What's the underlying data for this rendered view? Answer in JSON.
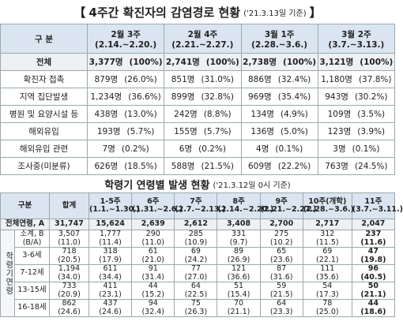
{
  "table1": {
    "open": "【",
    "close": "】",
    "title": "4주간 확진자의 감염경로 현황",
    "note": "('21.3.13일 기준)",
    "header": {
      "label": "구 분",
      "cols": [
        {
          "week": "2월 3주",
          "range": "(2.14.~2.20.)"
        },
        {
          "week": "2월 4주",
          "range": "(2.21.~2.27.)"
        },
        {
          "week": "3월 1주",
          "range": "(2.28.~3.6.)"
        },
        {
          "week": "3월 2주",
          "range": "(3.7.~3.13.)"
        }
      ]
    },
    "rows": [
      {
        "label": "전체",
        "cells": [
          {
            "count": "3,377명",
            "pct": "(100%)"
          },
          {
            "count": "2,741명",
            "pct": "(100%)"
          },
          {
            "count": "2,738명",
            "pct": "(100%)"
          },
          {
            "count": "3,121명",
            "pct": "(100%)"
          }
        ]
      },
      {
        "label": "확진자 접촉",
        "cells": [
          {
            "count": "879명",
            "pct": "(26.0%)"
          },
          {
            "count": "851명",
            "pct": "(31.0%)"
          },
          {
            "count": "886명",
            "pct": "(32.4%)"
          },
          {
            "count": "1,180명",
            "pct": "(37.8%)"
          }
        ]
      },
      {
        "label": "지역 집단발생",
        "cells": [
          {
            "count": "1,234명",
            "pct": "(36.6%)"
          },
          {
            "count": "899명",
            "pct": "(32.8%)"
          },
          {
            "count": "969명",
            "pct": "(35.4%)"
          },
          {
            "count": "943명",
            "pct": "(30.2%)"
          }
        ]
      },
      {
        "label": "병원 및 요양시설 등",
        "cells": [
          {
            "count": "438명",
            "pct": "(13.0%)"
          },
          {
            "count": "242명",
            "pct": "(8.8%)"
          },
          {
            "count": "134명",
            "pct": "(4.9%)"
          },
          {
            "count": "109명",
            "pct": "(3.5%)"
          }
        ]
      },
      {
        "label": "해외유입",
        "cells": [
          {
            "count": "193명",
            "pct": "(5.7%)"
          },
          {
            "count": "155명",
            "pct": "(5.7%)"
          },
          {
            "count": "136명",
            "pct": "(5.0%)"
          },
          {
            "count": "123명",
            "pct": "(3.9%)"
          }
        ]
      },
      {
        "label": "해외유입 관련",
        "cells": [
          {
            "count": "7명",
            "pct": "(0.2%)"
          },
          {
            "count": "6명",
            "pct": "(0.2%)"
          },
          {
            "count": "4명",
            "pct": "(0.1%)"
          },
          {
            "count": "3명",
            "pct": "(0.1%)"
          }
        ]
      },
      {
        "label": "조사중(미분류)",
        "cells": [
          {
            "count": "626명",
            "pct": "(18.5%)"
          },
          {
            "count": "588명",
            "pct": "(21.5%)"
          },
          {
            "count": "609명",
            "pct": "(22.2%)"
          },
          {
            "count": "763명",
            "pct": "(24.5%)"
          }
        ]
      }
    ]
  },
  "table2": {
    "title": "학령기 연령별 발생 현황",
    "note": "('21.3.12일 0시 기준)",
    "header": {
      "label": "구분",
      "total": "합계",
      "cols": [
        {
          "week": "1-5주",
          "range": "(1.1.~1.30.)"
        },
        {
          "week": "6주",
          "range": "(1.31.~2.6.)"
        },
        {
          "week": "7주",
          "range": "(2.7.~2.13.)"
        },
        {
          "week": "8주",
          "range": "(2.14.~2.20.)"
        },
        {
          "week": "9주",
          "range": "(2.21.~2.27.)"
        },
        {
          "week": "10주(개학)",
          "range": "(2.28.~3.6.)"
        },
        {
          "week": "11주",
          "range": "(3.7.~3.11.)"
        }
      ]
    },
    "total_row": {
      "label": "전체연령, A",
      "values": [
        "31,747",
        "15,624",
        "2,639",
        "2,612",
        "3,408",
        "2,700",
        "2,717",
        "2,047"
      ]
    },
    "group_label": "학령기연령",
    "rows": [
      {
        "label": "소계, B",
        "sub": "(B/A)",
        "values": [
          {
            "n": "3,507",
            "pct": "(11.0)"
          },
          {
            "n": "1,777",
            "pct": "(11.4)"
          },
          {
            "n": "290",
            "pct": "(11.0)"
          },
          {
            "n": "285",
            "pct": "(10.9)"
          },
          {
            "n": "331",
            "pct": "(9.7)"
          },
          {
            "n": "275",
            "pct": "(10.2)"
          },
          {
            "n": "312",
            "pct": "(11.5)"
          },
          {
            "n": "237",
            "pct": "(11.6)"
          }
        ]
      },
      {
        "label": "3-6세",
        "values": [
          {
            "n": "718",
            "pct": "(20.5)"
          },
          {
            "n": "318",
            "pct": "(17.9)"
          },
          {
            "n": "61",
            "pct": "(21.0)"
          },
          {
            "n": "69",
            "pct": "(24.2)"
          },
          {
            "n": "89",
            "pct": "(26.9)"
          },
          {
            "n": "65",
            "pct": "(23.6)"
          },
          {
            "n": "69",
            "pct": "(22.1)"
          },
          {
            "n": "47",
            "pct": "(19.8)"
          }
        ]
      },
      {
        "label": "7-12세",
        "values": [
          {
            "n": "1,194",
            "pct": "(34.0)"
          },
          {
            "n": "611",
            "pct": "(34.4)"
          },
          {
            "n": "91",
            "pct": "(31.4)"
          },
          {
            "n": "77",
            "pct": "(27.0)"
          },
          {
            "n": "121",
            "pct": "(36.6)"
          },
          {
            "n": "87",
            "pct": "(31.6)"
          },
          {
            "n": "111",
            "pct": "(35.6)"
          },
          {
            "n": "96",
            "pct": "(40.5)"
          }
        ]
      },
      {
        "label": "13-15세",
        "values": [
          {
            "n": "733",
            "pct": "(20.9)"
          },
          {
            "n": "411",
            "pct": "(23.1)"
          },
          {
            "n": "44",
            "pct": "(15.2)"
          },
          {
            "n": "64",
            "pct": "(22.5)"
          },
          {
            "n": "51",
            "pct": "(15.4)"
          },
          {
            "n": "59",
            "pct": "(21.5)"
          },
          {
            "n": "54",
            "pct": "(17.3)"
          },
          {
            "n": "50",
            "pct": "(21.1)"
          }
        ]
      },
      {
        "label": "16-18세",
        "values": [
          {
            "n": "862",
            "pct": "(24.6)"
          },
          {
            "n": "437",
            "pct": "(24.6)"
          },
          {
            "n": "94",
            "pct": "(32.4)"
          },
          {
            "n": "75",
            "pct": "(26.3)"
          },
          {
            "n": "70",
            "pct": "(21.1)"
          },
          {
            "n": "64",
            "pct": "(23.3)"
          },
          {
            "n": "78",
            "pct": "(25.0)"
          },
          {
            "n": "44",
            "pct": "(18.6)"
          }
        ]
      }
    ]
  }
}
